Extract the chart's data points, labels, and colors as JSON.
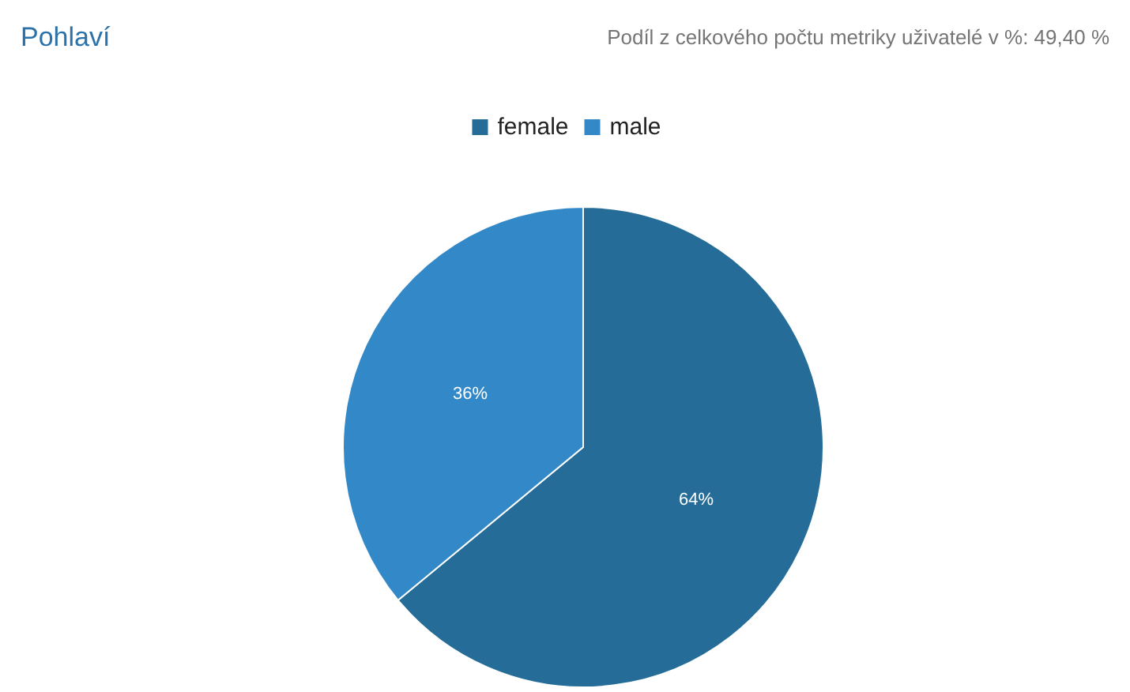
{
  "chart_data": {
    "type": "pie",
    "title": "Pohlaví",
    "subtitle": "Podíl z celkového počtu metriky uživatelé v %: 49,40 %",
    "categories": [
      "female",
      "male"
    ],
    "values": [
      64,
      36
    ],
    "colors": [
      "#256d98",
      "#3389c8"
    ],
    "value_labels": [
      "64%",
      "36%"
    ],
    "legend": "top"
  }
}
